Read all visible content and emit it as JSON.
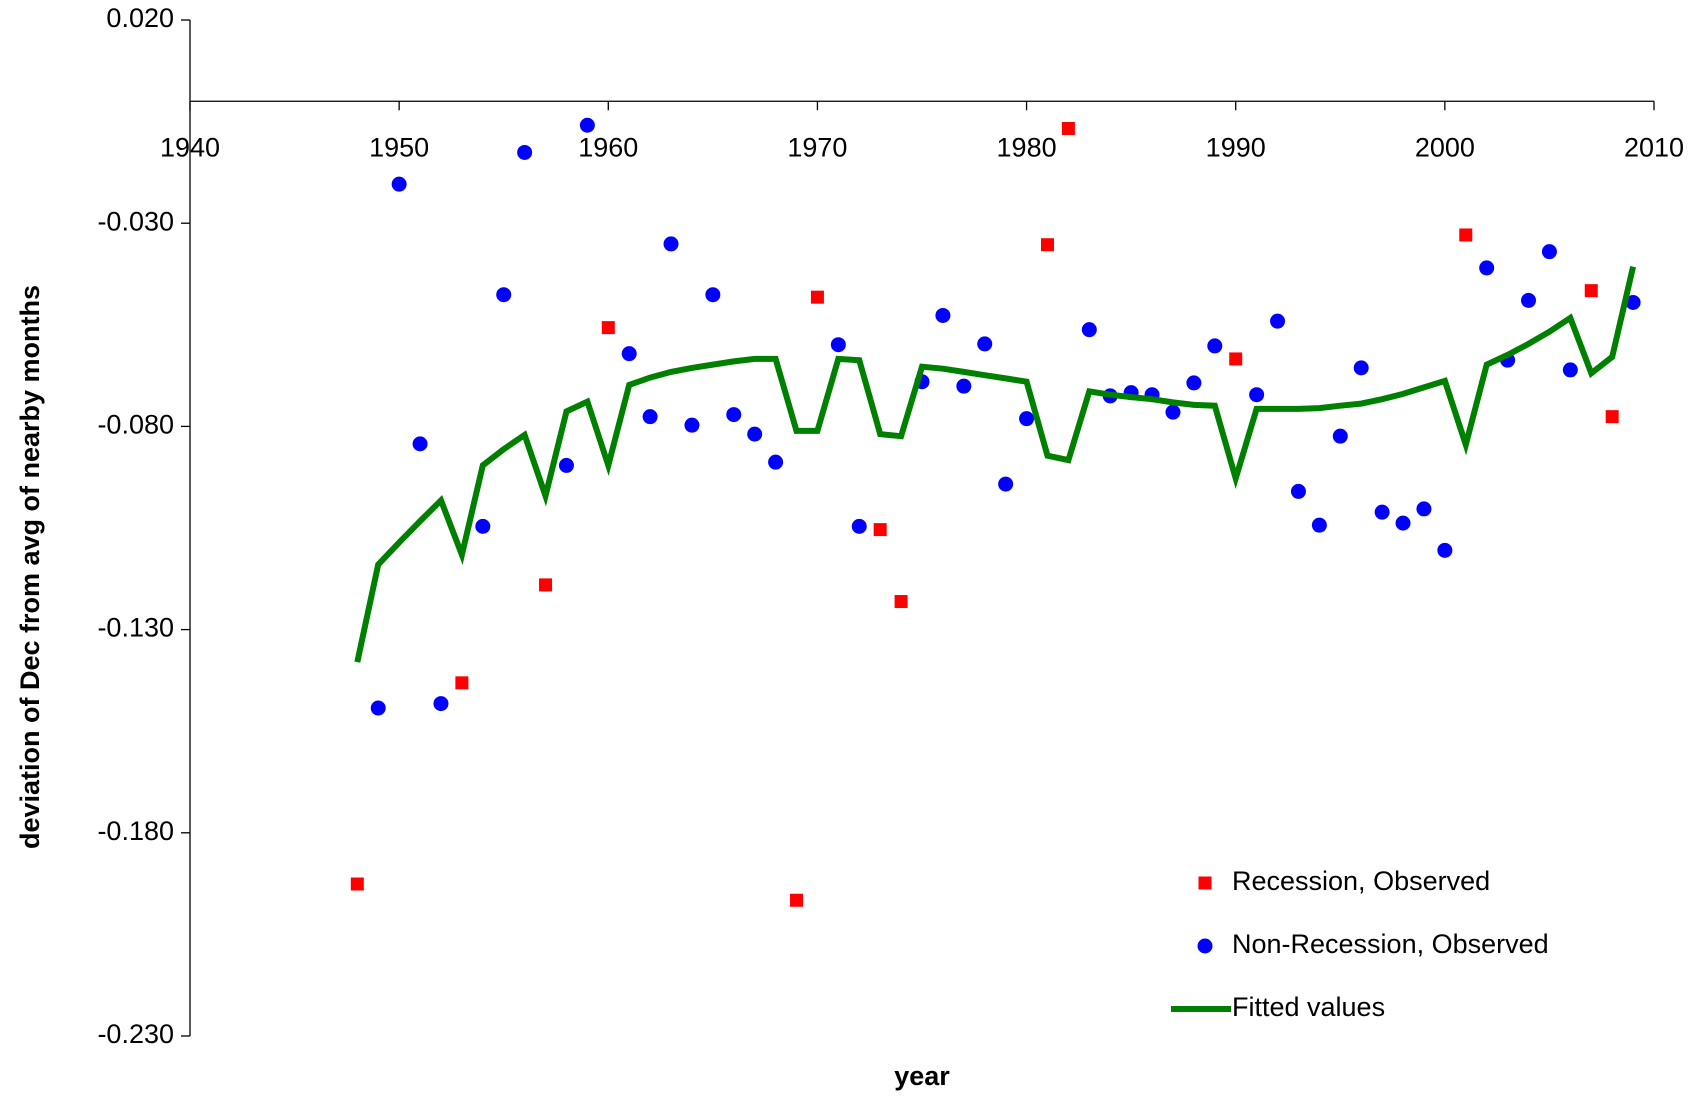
{
  "chart_data": {
    "type": "scatter",
    "x_label": "year",
    "y_label": "deviation of Dec from avg of nearby months",
    "xlim": [
      1940,
      2010
    ],
    "xticks": [
      1940,
      1950,
      1960,
      1970,
      1980,
      1990,
      2000,
      2010
    ],
    "ylim": [
      -0.23,
      0.02
    ],
    "yticks": [
      {
        "value": 0.02,
        "label": "0.020"
      },
      {
        "value": -0.03,
        "label": "-0.030"
      },
      {
        "value": -0.08,
        "label": "-0.080"
      },
      {
        "value": -0.13,
        "label": "-0.130"
      },
      {
        "value": -0.18,
        "label": "-0.180"
      },
      {
        "value": -0.23,
        "label": "-0.230"
      }
    ],
    "x_axis_crosses_at": 0,
    "grid": false,
    "legend": "lower right",
    "series": [
      {
        "name": "Recession, Observed",
        "marker": "square",
        "color": "#ff0000",
        "x": [
          1948,
          1953,
          1957,
          1960,
          1969,
          1970,
          1973,
          1974,
          1981,
          1982,
          1990,
          2001,
          2007,
          2008
        ],
        "values": [
          -0.1926,
          -0.1431,
          -0.119,
          -0.0557,
          -0.1966,
          -0.0482,
          -0.1054,
          -0.1231,
          -0.0353,
          -0.0067,
          -0.0634,
          -0.0329,
          -0.0466,
          -0.0776
        ]
      },
      {
        "name": "Non-Recession, Observed",
        "marker": "circle",
        "color": "#0000ff",
        "x": [
          1949,
          1950,
          1951,
          1952,
          1954,
          1955,
          1956,
          1958,
          1959,
          1961,
          1962,
          1963,
          1964,
          1965,
          1966,
          1967,
          1968,
          1971,
          1972,
          1975,
          1976,
          1977,
          1978,
          1979,
          1980,
          1983,
          1984,
          1985,
          1986,
          1987,
          1988,
          1989,
          1991,
          1992,
          1993,
          1994,
          1995,
          1996,
          1997,
          1998,
          1999,
          2000,
          2002,
          2003,
          2004,
          2005,
          2006,
          2009
        ],
        "values": [
          -0.1493,
          -0.0204,
          -0.0843,
          -0.1482,
          -0.1046,
          -0.0476,
          -0.0126,
          -0.0896,
          -0.0059,
          -0.0621,
          -0.0776,
          -0.0351,
          -0.0797,
          -0.0476,
          -0.0771,
          -0.0819,
          -0.0888,
          -0.0599,
          -0.1046,
          -0.069,
          -0.0527,
          -0.0701,
          -0.0597,
          -0.0942,
          -0.0781,
          -0.0562,
          -0.0725,
          -0.0717,
          -0.0722,
          -0.0765,
          -0.0693,
          -0.0602,
          -0.0722,
          -0.0541,
          -0.096,
          -0.1043,
          -0.0824,
          -0.0656,
          -0.1011,
          -0.1038,
          -0.1003,
          -0.1105,
          -0.041,
          -0.0637,
          -0.049,
          -0.037,
          -0.0661,
          -0.0495
        ]
      },
      {
        "name": "Fitted values",
        "marker": "line",
        "color": "#008000",
        "x": [
          1948,
          1949,
          1950,
          1951,
          1952,
          1953,
          1954,
          1955,
          1956,
          1957,
          1958,
          1959,
          1960,
          1961,
          1962,
          1963,
          1964,
          1965,
          1966,
          1967,
          1968,
          1969,
          1970,
          1971,
          1972,
          1973,
          1974,
          1975,
          1976,
          1977,
          1978,
          1979,
          1980,
          1981,
          1982,
          1983,
          1984,
          1985,
          1986,
          1987,
          1988,
          1989,
          1990,
          1991,
          1992,
          1993,
          1994,
          1995,
          1996,
          1997,
          1998,
          1999,
          2000,
          2001,
          2002,
          2003,
          2004,
          2005,
          2006,
          2007,
          2008,
          2009
        ],
        "values": [
          -0.138,
          -0.114,
          -0.1086,
          -0.1033,
          -0.0982,
          -0.1116,
          -0.0896,
          -0.0856,
          -0.0821,
          -0.0971,
          -0.0763,
          -0.0739,
          -0.0896,
          -0.0698,
          -0.068,
          -0.0666,
          -0.0656,
          -0.0648,
          -0.064,
          -0.0634,
          -0.0634,
          -0.0811,
          -0.0811,
          -0.0634,
          -0.0637,
          -0.0819,
          -0.0824,
          -0.0653,
          -0.0658,
          -0.0666,
          -0.0674,
          -0.0682,
          -0.069,
          -0.0872,
          -0.0883,
          -0.0714,
          -0.0722,
          -0.0728,
          -0.0733,
          -0.0741,
          -0.0747,
          -0.0749,
          -0.0928,
          -0.0757,
          -0.0757,
          -0.0757,
          -0.0755,
          -0.0749,
          -0.0744,
          -0.0733,
          -0.072,
          -0.0704,
          -0.0688,
          -0.0845,
          -0.0648,
          -0.0624,
          -0.0597,
          -0.0567,
          -0.0533,
          -0.0669,
          -0.0629,
          -0.0407
        ]
      }
    ]
  }
}
